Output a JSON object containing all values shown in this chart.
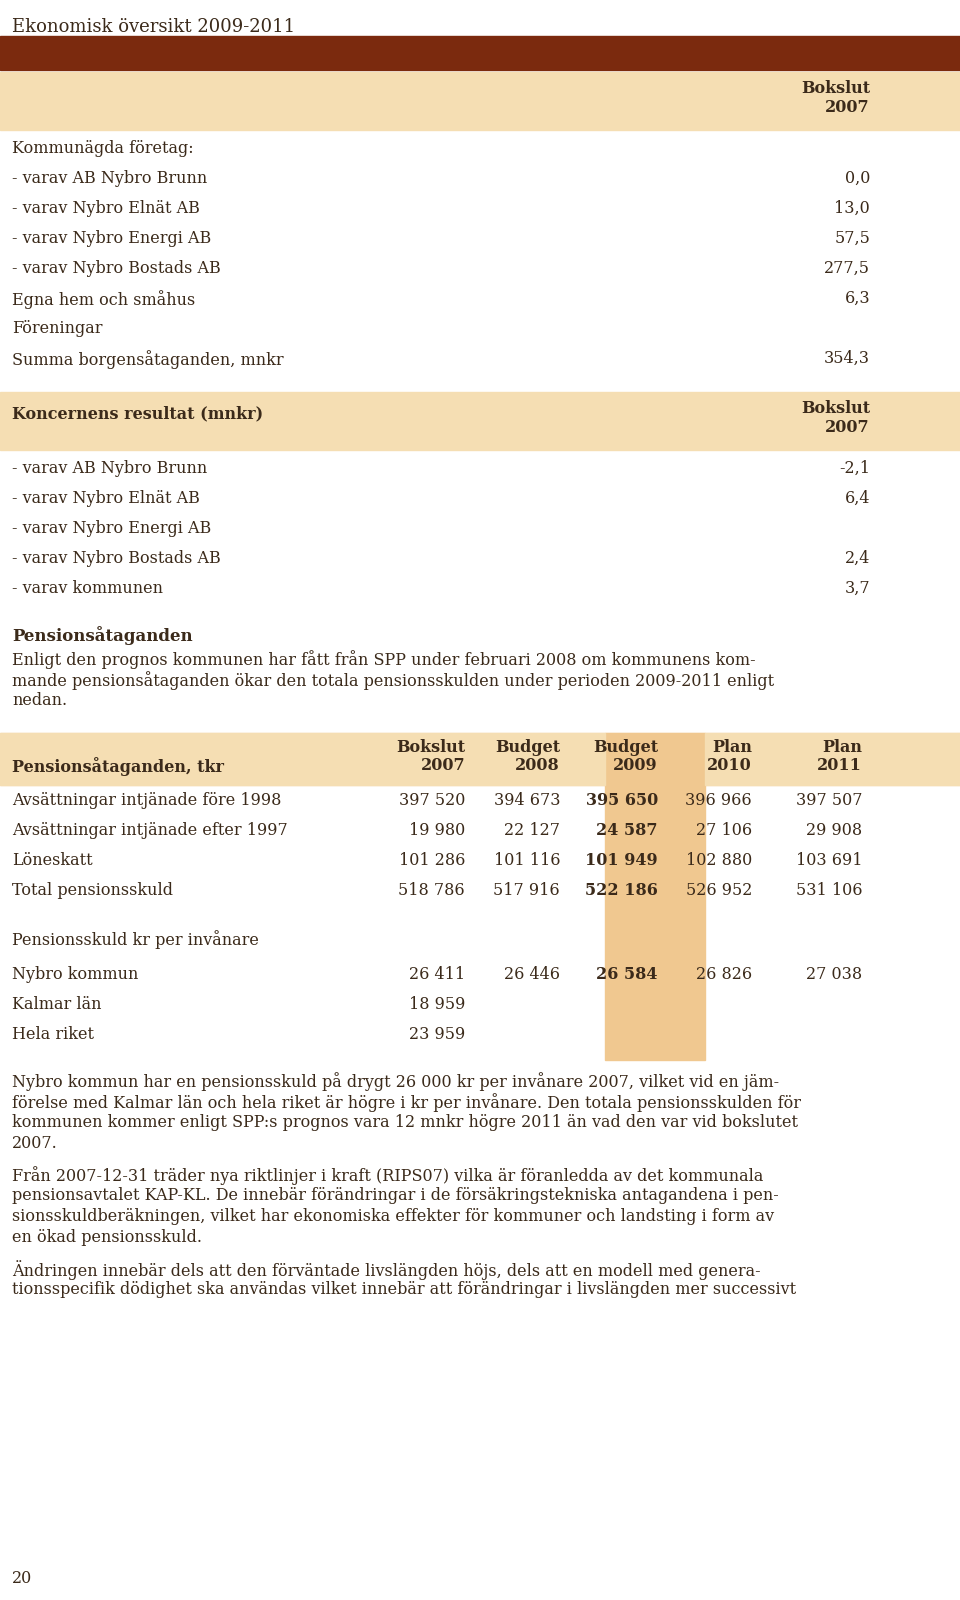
{
  "title": "Ekonomisk översikt 2009-2011",
  "header_bar_color": "#7B2A0E",
  "bg_color": "#FFFFFF",
  "highlight_bg": "#F5DEB3",
  "highlight_col_bg": "#F0C890",
  "text_color": "#3B2A1A",
  "section1_header": "Bokslut\n2007",
  "section1_rows": [
    {
      "label": "Kommunägda företag:",
      "value": "",
      "bold": false
    },
    {
      "label": "- varav AB Nybro Brunn",
      "value": "0,0",
      "bold": false
    },
    {
      "label": "- varav Nybro Elnät AB",
      "value": "13,0",
      "bold": false
    },
    {
      "label": "- varav Nybro Energi AB",
      "value": "57,5",
      "bold": false
    },
    {
      "label": "- varav Nybro Bostads AB",
      "value": "277,5",
      "bold": false
    },
    {
      "label": "Egna hem och småhus",
      "value": "6,3",
      "bold": false
    },
    {
      "label": "Föreningar",
      "value": "",
      "bold": false
    },
    {
      "label": "Summa borgensåtaganden, mnkr",
      "value": "354,3",
      "bold": false
    }
  ],
  "section2_header_label": "Koncernens resultat (mnkr)",
  "section2_header_value": "Bokslut\n2007",
  "section2_rows": [
    {
      "label": "- varav AB Nybro Brunn",
      "value": "-2,1",
      "bold": false
    },
    {
      "label": "- varav Nybro Elnät AB",
      "value": "6,4",
      "bold": false
    },
    {
      "label": "- varav Nybro Energi AB",
      "value": "",
      "bold": false
    },
    {
      "label": "- varav Nybro Bostads AB",
      "value": "2,4",
      "bold": false
    },
    {
      "label": "- varav kommunen",
      "value": "3,7",
      "bold": false
    }
  ],
  "pension_heading": "Pensionsåtaganden",
  "pension_lines": [
    "Enligt den prognos kommunen har fått från SPP under februari 2008 om kommunens kom-",
    "mande pensionsåtaganden ökar den totala pensionsskulden under perioden 2009-2011 enligt",
    "nedan."
  ],
  "table2_header_label": "Pensionsåtaganden, tkr",
  "table2_cols": [
    "Bokslut\n2007",
    "Budget\n2008",
    "Budget\n2009",
    "Plan\n2010",
    "Plan\n2011"
  ],
  "table2_highlight_col": 2,
  "table2_rows": [
    {
      "label": "Avsättningar intjänade före 1998",
      "values": [
        "397 520",
        "394 673",
        "395 650",
        "396 966",
        "397 507"
      ]
    },
    {
      "label": "Avsättningar intjänade efter 1997",
      "values": [
        "19 980",
        "22 127",
        "24 587",
        "27 106",
        "29 908"
      ]
    },
    {
      "label": "Löneskatt",
      "values": [
        "101 286",
        "101 116",
        "101 949",
        "102 880",
        "103 691"
      ]
    },
    {
      "label": "Total pensionsskuld",
      "values": [
        "518 786",
        "517 916",
        "522 186",
        "526 952",
        "531 106"
      ]
    }
  ],
  "table2_section2_label": "Pensionsskuld kr per invånare",
  "table2_section2_rows": [
    {
      "label": "Nybro kommun",
      "values": [
        "26 411",
        "26 446",
        "26 584",
        "26 826",
        "27 038"
      ]
    },
    {
      "label": "Kalmar län",
      "values": [
        "18 959",
        "",
        "",
        "",
        ""
      ]
    },
    {
      "label": "Hela riket",
      "values": [
        "23 959",
        "",
        "",
        "",
        ""
      ]
    }
  ],
  "body_lines": [
    "Nybro kommun har en pensionsskuld på drygt 26 000 kr per invånare 2007, vilket vid en jäm-",
    "förelse med Kalmar län och hela riket är högre i kr per invånare. Den totala pensionsskulden för",
    "kommunen kommer enligt SPP:s prognos vara 12 mnkr högre 2011 än vad den var vid bokslutet",
    "2007.",
    "",
    "Från 2007-12-31 träder nya riktlinjer i kraft (RIPS07) vilka är föranledda av det kommunala",
    "pensionsavtalet KAP-KL. De innebär förändringar i de försäkringstekniska antagandena i pen-",
    "sionsskuldberäkningen, vilket har ekonomiska effekter för kommuner och landsting i form av",
    "en ökad pensionsskuld.",
    "",
    "Ändringen innebär dels att den förväntade livslängden höjs, dels att en modell med genera-",
    "tionsspecifik dödighet ska användas vilket innebär att förändringar i livslängden mer successivt"
  ],
  "page_number": "20"
}
